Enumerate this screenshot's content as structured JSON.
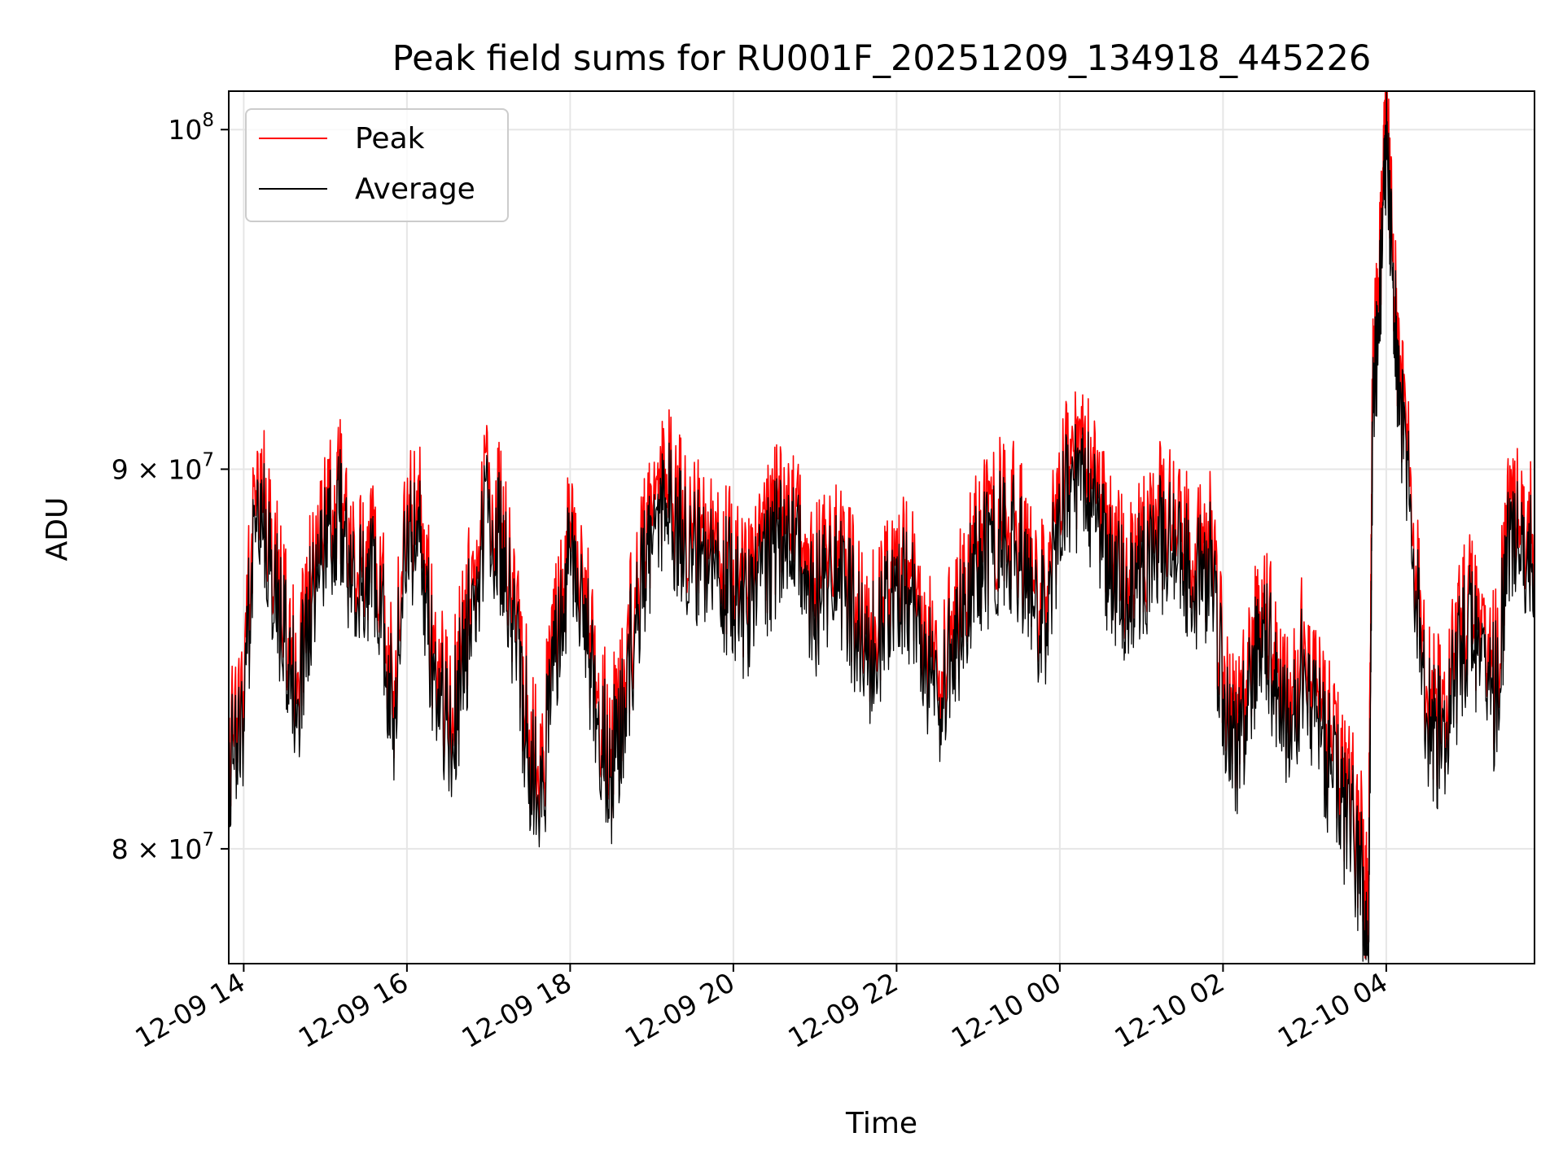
{
  "chart_data": {
    "type": "line",
    "title": "Peak field sums for RU001F_20251209_134918_445226",
    "xlabel": "Time",
    "ylabel": "ADU",
    "yscale": "log",
    "grid": true,
    "legend_placement": "top-left",
    "xlim": [
      "2025-12-09 13:49",
      "2025-12-10 05:49"
    ],
    "ylim": [
      77200000,
      101200000
    ],
    "x_ticks": [
      {
        "value": "2025-12-09 14:00",
        "label": "12-09 14"
      },
      {
        "value": "2025-12-09 16:00",
        "label": "12-09 16"
      },
      {
        "value": "2025-12-09 18:00",
        "label": "12-09 18"
      },
      {
        "value": "2025-12-09 20:00",
        "label": "12-09 20"
      },
      {
        "value": "2025-12-09 22:00",
        "label": "12-09 22"
      },
      {
        "value": "2025-12-10 00:00",
        "label": "12-10 00"
      },
      {
        "value": "2025-12-10 02:00",
        "label": "12-10 02"
      },
      {
        "value": "2025-12-10 04:00",
        "label": "12-10 04"
      }
    ],
    "y_ticks": [
      {
        "value": 80000000,
        "mantissa": "8",
        "base": "10",
        "exp": "7"
      },
      {
        "value": 90000000,
        "mantissa": "9",
        "base": "10",
        "exp": "7"
      },
      {
        "value": 100000000,
        "mantissa": "",
        "base": "10",
        "exp": "8"
      }
    ],
    "series_colors": {
      "peak": "#ff0000",
      "average": "#000000"
    },
    "times": [
      "2025-12-09 13:49",
      "2025-12-09 14:00",
      "2025-12-09 14:10",
      "2025-12-09 14:20",
      "2025-12-09 14:30",
      "2025-12-09 14:40",
      "2025-12-09 14:50",
      "2025-12-09 15:00",
      "2025-12-09 15:10",
      "2025-12-09 15:20",
      "2025-12-09 15:30",
      "2025-12-09 15:40",
      "2025-12-09 15:50",
      "2025-12-09 16:00",
      "2025-12-09 16:10",
      "2025-12-09 16:20",
      "2025-12-09 16:30",
      "2025-12-09 16:40",
      "2025-12-09 16:50",
      "2025-12-09 17:00",
      "2025-12-09 17:10",
      "2025-12-09 17:20",
      "2025-12-09 17:30",
      "2025-12-09 17:40",
      "2025-12-09 17:50",
      "2025-12-09 18:00",
      "2025-12-09 18:10",
      "2025-12-09 18:20",
      "2025-12-09 18:30",
      "2025-12-09 18:40",
      "2025-12-09 18:50",
      "2025-12-09 19:00",
      "2025-12-09 19:10",
      "2025-12-09 19:20",
      "2025-12-09 19:30",
      "2025-12-09 19:40",
      "2025-12-09 19:50",
      "2025-12-09 20:00",
      "2025-12-09 20:10",
      "2025-12-09 20:20",
      "2025-12-09 20:30",
      "2025-12-09 20:40",
      "2025-12-09 20:50",
      "2025-12-09 21:00",
      "2025-12-09 21:10",
      "2025-12-09 21:20",
      "2025-12-09 21:30",
      "2025-12-09 21:40",
      "2025-12-09 21:50",
      "2025-12-09 22:00",
      "2025-12-09 22:10",
      "2025-12-09 22:20",
      "2025-12-09 22:30",
      "2025-12-09 22:40",
      "2025-12-09 22:50",
      "2025-12-09 23:00",
      "2025-12-09 23:10",
      "2025-12-09 23:20",
      "2025-12-09 23:30",
      "2025-12-09 23:40",
      "2025-12-09 23:50",
      "2025-12-10 00:00",
      "2025-12-10 00:10",
      "2025-12-10 00:20",
      "2025-12-10 00:30",
      "2025-12-10 00:40",
      "2025-12-10 00:50",
      "2025-12-10 01:00",
      "2025-12-10 01:10",
      "2025-12-10 01:20",
      "2025-12-10 01:30",
      "2025-12-10 01:40",
      "2025-12-10 01:50",
      "2025-12-10 02:00",
      "2025-12-10 02:10",
      "2025-12-10 02:20",
      "2025-12-10 02:30",
      "2025-12-10 02:40",
      "2025-12-10 02:50",
      "2025-12-10 03:00",
      "2025-12-10 03:10",
      "2025-12-10 03:20",
      "2025-12-10 03:30",
      "2025-12-10 03:40",
      "2025-12-10 03:47",
      "2025-12-10 03:50",
      "2025-12-10 03:55",
      "2025-12-10 04:00",
      "2025-12-10 04:05",
      "2025-12-10 04:10",
      "2025-12-10 04:20",
      "2025-12-10 04:30",
      "2025-12-10 04:40",
      "2025-12-10 04:50",
      "2025-12-10 05:00",
      "2025-12-10 05:10",
      "2025-12-10 05:20",
      "2025-12-10 05:30",
      "2025-12-10 05:40",
      "2025-12-10 05:49"
    ],
    "series": [
      {
        "name": "Peak",
        "values": [
          82800000,
          84000000,
          90500000,
          88000000,
          86000000,
          84500000,
          87000000,
          88500000,
          89500000,
          87500000,
          88000000,
          87000000,
          84000000,
          89000000,
          88500000,
          85000000,
          83500000,
          85000000,
          87500000,
          89500000,
          88500000,
          86000000,
          83000000,
          82500000,
          85500000,
          88500000,
          87000000,
          84000000,
          82500000,
          84500000,
          87000000,
          88500000,
          90000000,
          89000000,
          88500000,
          88000000,
          87500000,
          87500000,
          86500000,
          87500000,
          88500000,
          89000000,
          88000000,
          87000000,
          87500000,
          87500000,
          86500000,
          85500000,
          86500000,
          87500000,
          87000000,
          85500000,
          84500000,
          85500000,
          87000000,
          88000000,
          88500000,
          89000000,
          88500000,
          87000000,
          86500000,
          89500000,
          90500000,
          90000000,
          89000000,
          87500000,
          87000000,
          88000000,
          88500000,
          89000000,
          88500000,
          87500000,
          88000000,
          84500000,
          83000000,
          85000000,
          86500000,
          84500000,
          83500000,
          85500000,
          84000000,
          82500000,
          81500000,
          80500000,
          78800000,
          92500000,
          95500000,
          100800000,
          96000000,
          92500000,
          88500000,
          84000000,
          83500000,
          85000000,
          86500000,
          85500000,
          84500000,
          88500000,
          89000000,
          88000000
        ]
      },
      {
        "name": "Average",
        "values": [
          82200000,
          83300000,
          89700000,
          87200000,
          85300000,
          83800000,
          86300000,
          87800000,
          88800000,
          86800000,
          87300000,
          86300000,
          83300000,
          88300000,
          87700000,
          84300000,
          82800000,
          84300000,
          86800000,
          88800000,
          87800000,
          85300000,
          82300000,
          81700000,
          84800000,
          87800000,
          86300000,
          83300000,
          81800000,
          83800000,
          86300000,
          87700000,
          89200000,
          88200000,
          87800000,
          87300000,
          86800000,
          86800000,
          85800000,
          86800000,
          87700000,
          88200000,
          87300000,
          86300000,
          86800000,
          86800000,
          85800000,
          84800000,
          85800000,
          86800000,
          86300000,
          84800000,
          83800000,
          84800000,
          86300000,
          87300000,
          87700000,
          88200000,
          87700000,
          86300000,
          85800000,
          88700000,
          89700000,
          89200000,
          88200000,
          86800000,
          86300000,
          87300000,
          87700000,
          88200000,
          87700000,
          86800000,
          87300000,
          83800000,
          82300000,
          84300000,
          85800000,
          83800000,
          82800000,
          84800000,
          83300000,
          81800000,
          80800000,
          79800000,
          77200000,
          91500000,
          94500000,
          99800000,
          95200000,
          91800000,
          87800000,
          83300000,
          82800000,
          84300000,
          85800000,
          84800000,
          83800000,
          87700000,
          88200000,
          87200000
        ]
      }
    ]
  }
}
